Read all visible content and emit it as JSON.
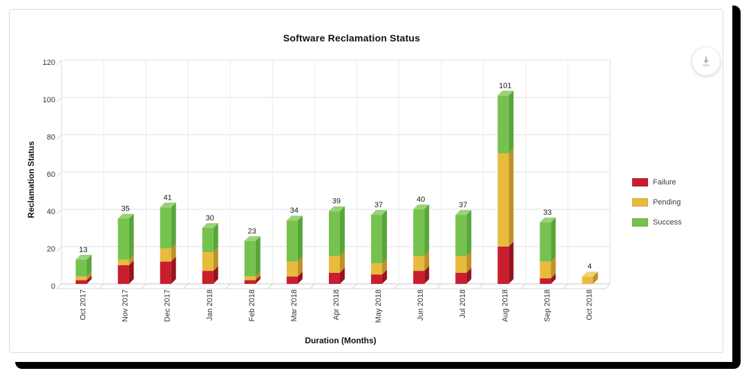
{
  "title": "Software Reclamation Status",
  "axes": {
    "y_title": "Reclamation Status",
    "x_title": "Duration (Months)",
    "y_min": 0,
    "y_max": 120,
    "y_step": 20
  },
  "icons": {
    "download": "download-arrow-with-bar"
  },
  "legend": {
    "position": "right",
    "items": [
      {
        "label": "Failure",
        "color": "#c81e2e"
      },
      {
        "label": "Pending",
        "color": "#e9bb3d"
      },
      {
        "label": "Success",
        "color": "#76c24f"
      }
    ]
  },
  "chart_data": {
    "type": "bar",
    "stacked": true,
    "style": "3d",
    "title": "Software Reclamation Status",
    "xlabel": "Duration (Months)",
    "ylabel": "Reclamation Status",
    "ylim": [
      0,
      120
    ],
    "y_tick_step": 20,
    "grid": true,
    "legend_position": "right",
    "categories": [
      "Oct 2017",
      "Nov 2017",
      "Dec 2017",
      "Jan 2018",
      "Feb 2018",
      "Mar 2018",
      "Apr 2018",
      "May 2018",
      "Jun 2018",
      "Jul 2018",
      "Aug 2018",
      "Sep 2018",
      "Oct 2018"
    ],
    "series": [
      {
        "name": "Failure",
        "color": "#c81e2e",
        "color_top": "#d9555e",
        "color_side": "#98131f",
        "values": [
          2,
          10,
          12,
          7,
          2,
          4,
          6,
          5,
          7,
          6,
          20,
          3,
          0
        ]
      },
      {
        "name": "Pending",
        "color": "#e9bb3d",
        "color_top": "#f2d276",
        "color_side": "#bd9226",
        "values": [
          2,
          3,
          7,
          10,
          2,
          8,
          9,
          6,
          8,
          9,
          50,
          9,
          4
        ]
      },
      {
        "name": "Success",
        "color": "#76c24f",
        "color_top": "#9ad179",
        "color_side": "#5aa53b",
        "values": [
          9,
          22,
          22,
          13,
          19,
          22,
          24,
          26,
          25,
          22,
          31,
          21,
          0
        ]
      }
    ],
    "totals": [
      13,
      35,
      41,
      30,
      23,
      34,
      39,
      37,
      40,
      37,
      101,
      33,
      4
    ]
  }
}
